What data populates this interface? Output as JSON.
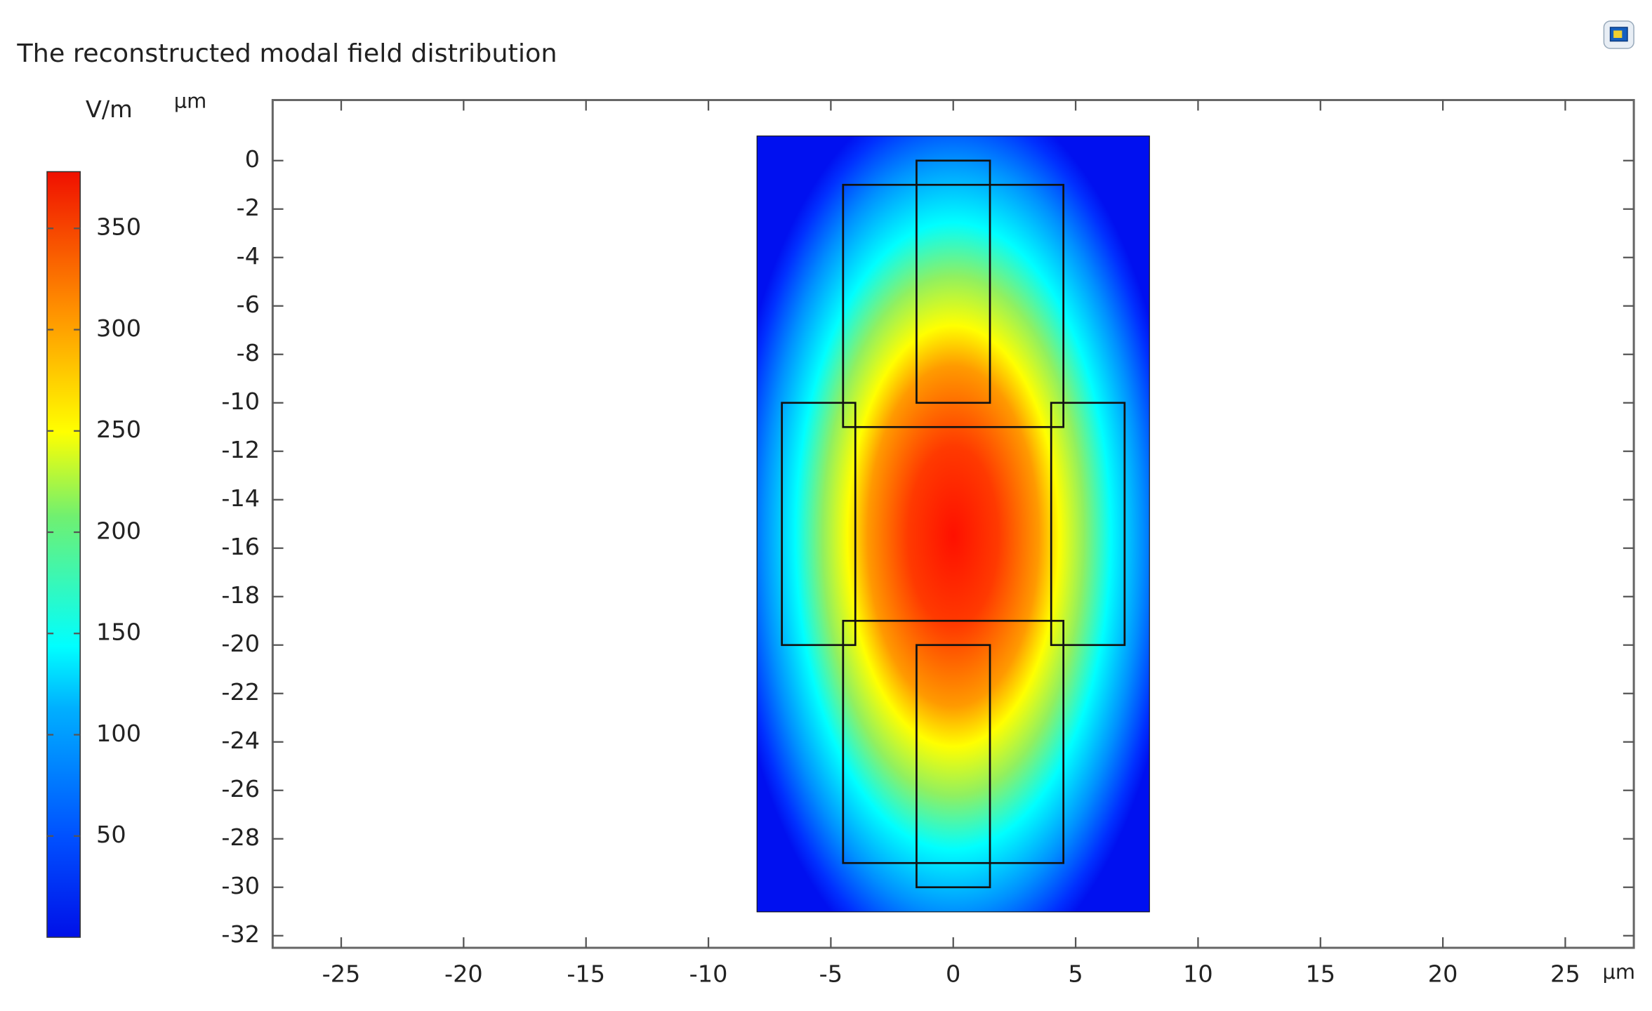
{
  "chart_data": {
    "type": "surface",
    "title": "The reconstructed modal field distribution",
    "x_unit": "µm",
    "y_unit": "µm",
    "xlim": [
      -27.8,
      27.8
    ],
    "ylim": [
      -32.5,
      2.5
    ],
    "xticks": [
      -25,
      -20,
      -15,
      -10,
      -5,
      0,
      5,
      10,
      15,
      20,
      25
    ],
    "yticks": [
      0,
      -2,
      -4,
      -6,
      -8,
      -10,
      -12,
      -14,
      -16,
      -18,
      -20,
      -22,
      -24,
      -26,
      -28,
      -30,
      -32
    ],
    "colorbar": {
      "unit": "V/m",
      "lim": [
        0,
        378
      ],
      "ticks": [
        50,
        100,
        150,
        200,
        250,
        300,
        350
      ]
    },
    "peak": {
      "x": 0,
      "y": -15.5,
      "value": 378
    },
    "domain": {
      "x": [
        -8,
        8
      ],
      "y": [
        -31,
        1
      ]
    },
    "shapes": [
      {
        "x": [
          -1.5,
          1.5
        ],
        "y": [
          -10,
          0
        ]
      },
      {
        "x": [
          -4.5,
          4.5
        ],
        "y": [
          -11,
          -1
        ]
      },
      {
        "x": [
          -7,
          -4
        ],
        "y": [
          -20,
          -10
        ]
      },
      {
        "x": [
          4,
          7
        ],
        "y": [
          -20,
          -10
        ]
      },
      {
        "x": [
          -4.5,
          4.5
        ],
        "y": [
          -29,
          -19
        ]
      },
      {
        "x": [
          -1.5,
          1.5
        ],
        "y": [
          -30,
          -20
        ]
      }
    ]
  }
}
